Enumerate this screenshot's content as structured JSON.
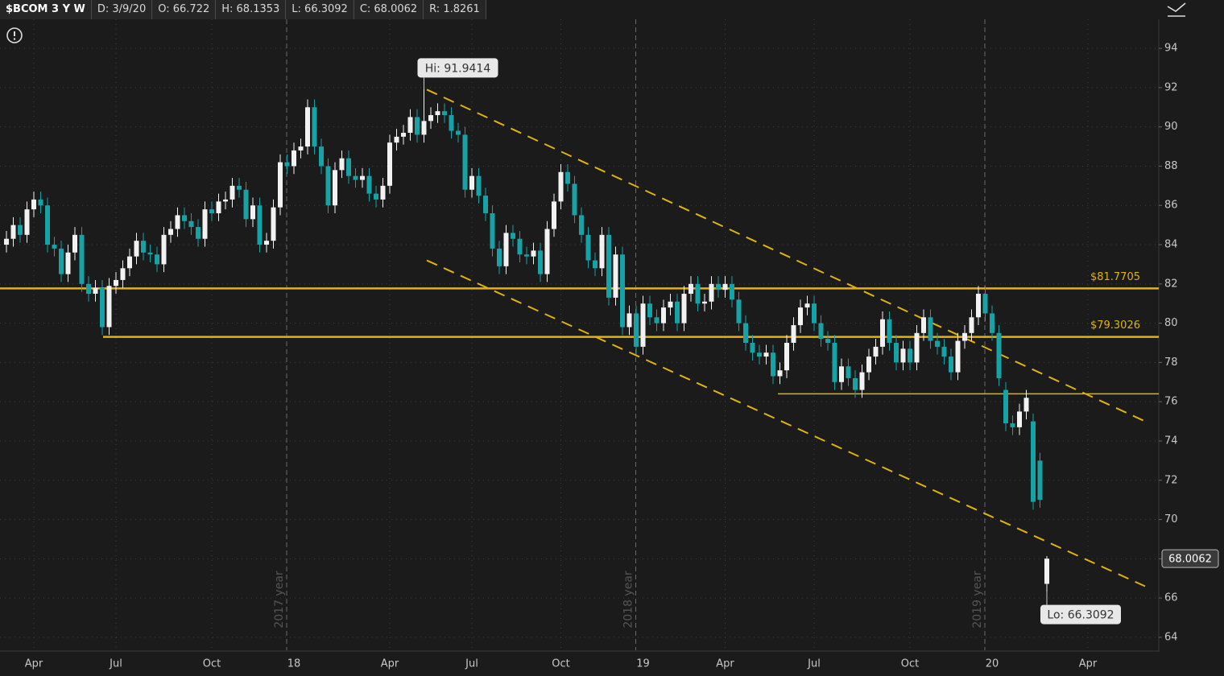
{
  "header": [
    "$BCOM 3 Y W",
    "D: 3/9/20",
    "O: 66.722",
    "H: 68.1353",
    "L: 66.3092",
    "C: 68.0062",
    "R: 1.8261"
  ],
  "chart_data": {
    "type": "candlestick",
    "categories": [
      null,
      null,
      null,
      null,
      "Apr",
      null,
      null,
      null,
      null,
      null,
      null,
      null,
      null,
      null,
      null,
      null,
      "Jul",
      null,
      null,
      null,
      null,
      null,
      null,
      null,
      null,
      null,
      null,
      null,
      null,
      null,
      "Oct",
      null,
      null,
      null,
      null,
      null,
      null,
      null,
      null,
      null,
      null,
      null,
      "18",
      null,
      null,
      null,
      null,
      null,
      null,
      null,
      null,
      null,
      null,
      null,
      null,
      null,
      "Apr",
      null,
      null,
      null,
      null,
      null,
      null,
      null,
      null,
      null,
      null,
      null,
      "Jul",
      null,
      null,
      null,
      null,
      null,
      null,
      null,
      null,
      null,
      null,
      null,
      null,
      "Oct",
      null,
      null,
      null,
      null,
      null,
      null,
      null,
      null,
      null,
      null,
      null,
      "19",
      null,
      null,
      null,
      null,
      null,
      null,
      null,
      null,
      null,
      null,
      null,
      "Apr",
      null,
      null,
      null,
      null,
      null,
      null,
      null,
      null,
      null,
      null,
      null,
      null,
      "Jul",
      null,
      null,
      null,
      null,
      null,
      null,
      null,
      null,
      null,
      null,
      null,
      null,
      null,
      "Oct",
      null,
      null,
      null,
      null,
      null,
      null,
      null,
      null,
      null,
      null,
      null,
      "20",
      null,
      null,
      null,
      null,
      null,
      null,
      null,
      null,
      null,
      null,
      null,
      null,
      null,
      "Apr",
      null,
      null,
      null,
      null,
      null,
      null,
      null,
      null,
      null,
      null
    ],
    "open": [
      84.0,
      84.3,
      85.0,
      84.5,
      85.8,
      86.3,
      86.0,
      84.0,
      83.8,
      82.5,
      83.6,
      84.5,
      82.0,
      81.5,
      81.8,
      79.8,
      81.9,
      82.2,
      82.8,
      83.4,
      84.2,
      83.6,
      83.5,
      83.0,
      84.5,
      84.8,
      85.5,
      85.2,
      84.9,
      84.3,
      85.8,
      85.6,
      86.2,
      86.3,
      87.0,
      86.8,
      85.3,
      86.0,
      84.0,
      84.2,
      85.9,
      88.2,
      88.0,
      88.8,
      89.0,
      91.0,
      89.0,
      88.0,
      86.0,
      87.8,
      88.4,
      87.5,
      87.3,
      87.5,
      86.6,
      86.3,
      87.0,
      89.2,
      89.5,
      89.7,
      90.5,
      89.6,
      90.3,
      90.6,
      90.8,
      90.6,
      89.8,
      89.6,
      86.8,
      87.5,
      86.5,
      85.6,
      83.8,
      82.9,
      84.6,
      84.3,
      83.5,
      83.4,
      83.7,
      82.5,
      84.8,
      86.2,
      87.7,
      87.1,
      85.5,
      84.5,
      83.2,
      82.8,
      84.5,
      81.3,
      83.5,
      79.8,
      80.5,
      78.8,
      81.0,
      80.3,
      80.0,
      80.8,
      81.1,
      80.0,
      81.5,
      82.0,
      81.0,
      81.1,
      82.0,
      81.7,
      82.0,
      81.2,
      80.0,
      79.0,
      78.5,
      78.3,
      78.5,
      77.3,
      77.6,
      79.0,
      79.9,
      80.8,
      81.0,
      80.0,
      79.2,
      79.0,
      77.0,
      77.8,
      77.2,
      76.6,
      77.5,
      78.3,
      78.8,
      80.2,
      79.0,
      78.0,
      78.7,
      78.0,
      79.5,
      80.3,
      79.1,
      78.8,
      78.3,
      77.5,
      79.1,
      79.5,
      80.3,
      81.5,
      80.5,
      79.5,
      76.6,
      74.9,
      74.7,
      75.5,
      75.0,
      73.0,
      66.722,
      null,
      null,
      null,
      null,
      null,
      null,
      null,
      null,
      null,
      null,
      null,
      null,
      null,
      null,
      null,
      null
    ],
    "high": [
      84.7,
      85.4,
      85.4,
      86.2,
      86.7,
      86.7,
      86.4,
      84.4,
      84.2,
      84.0,
      84.9,
      84.9,
      82.4,
      82.2,
      82.2,
      82.3,
      82.6,
      83.2,
      83.8,
      84.6,
      84.6,
      84.0,
      83.9,
      84.9,
      85.2,
      85.9,
      85.9,
      85.6,
      85.3,
      86.2,
      86.2,
      86.6,
      86.7,
      87.4,
      87.4,
      87.2,
      86.4,
      86.4,
      84.6,
      86.3,
      88.6,
      88.6,
      89.2,
      89.4,
      91.4,
      91.4,
      89.4,
      88.4,
      88.2,
      88.8,
      88.8,
      87.9,
      87.9,
      87.9,
      87.0,
      87.4,
      89.6,
      89.9,
      90.1,
      90.9,
      90.9,
      91.9414,
      91.0,
      91.2,
      91.2,
      91.0,
      90.2,
      90.0,
      87.9,
      87.9,
      86.9,
      86.0,
      84.2,
      85.0,
      85.0,
      84.7,
      83.9,
      84.1,
      84.1,
      85.2,
      86.6,
      88.1,
      88.1,
      87.5,
      85.9,
      84.9,
      83.6,
      84.9,
      84.9,
      83.9,
      83.9,
      80.9,
      80.9,
      81.4,
      81.4,
      80.7,
      81.2,
      81.5,
      81.5,
      81.9,
      82.4,
      82.4,
      81.5,
      82.4,
      82.4,
      82.4,
      82.4,
      81.6,
      80.4,
      79.4,
      78.9,
      78.9,
      78.9,
      78.0,
      79.4,
      80.3,
      81.2,
      81.4,
      81.4,
      80.4,
      79.6,
      79.4,
      78.2,
      78.2,
      77.6,
      77.9,
      78.7,
      79.2,
      80.6,
      80.6,
      79.4,
      79.1,
      79.1,
      79.9,
      80.7,
      80.7,
      79.5,
      79.2,
      78.7,
      79.5,
      79.9,
      80.7,
      81.9,
      81.9,
      80.9,
      79.9,
      77.0,
      75.3,
      75.9,
      76.6,
      75.4,
      73.4,
      68.1353,
      null,
      null,
      null,
      null,
      null,
      null,
      null,
      null,
      null,
      null,
      null,
      null,
      null,
      null,
      null,
      null
    ],
    "low": [
      83.6,
      83.9,
      84.1,
      84.1,
      85.4,
      85.6,
      83.6,
      83.4,
      82.1,
      82.1,
      83.2,
      81.6,
      81.1,
      81.1,
      79.4,
      79.4,
      81.5,
      81.8,
      82.4,
      83.0,
      83.2,
      83.1,
      82.6,
      82.6,
      84.1,
      84.4,
      84.8,
      84.5,
      83.9,
      83.9,
      85.2,
      85.2,
      85.8,
      85.9,
      86.4,
      84.9,
      84.9,
      83.6,
      83.6,
      83.8,
      85.5,
      87.6,
      87.6,
      88.4,
      88.6,
      88.6,
      87.6,
      85.6,
      85.6,
      87.4,
      87.1,
      86.9,
      86.9,
      86.2,
      85.9,
      85.9,
      86.6,
      88.8,
      89.1,
      89.3,
      89.2,
      89.2,
      89.9,
      90.2,
      90.2,
      89.4,
      89.2,
      86.4,
      86.4,
      86.1,
      85.2,
      83.4,
      82.5,
      82.5,
      83.9,
      83.1,
      83.0,
      83.0,
      82.1,
      82.1,
      84.4,
      85.8,
      86.7,
      85.1,
      84.1,
      82.8,
      82.4,
      82.4,
      80.9,
      80.9,
      79.4,
      79.4,
      78.4,
      78.4,
      79.9,
      79.6,
      79.6,
      80.4,
      79.6,
      79.6,
      81.1,
      80.6,
      80.6,
      80.7,
      81.3,
      81.3,
      80.8,
      79.6,
      78.6,
      78.1,
      77.9,
      77.9,
      76.9,
      76.9,
      77.2,
      78.6,
      79.5,
      80.4,
      79.6,
      78.8,
      78.6,
      76.6,
      76.6,
      76.8,
      76.2,
      76.2,
      77.1,
      77.9,
      78.4,
      78.6,
      77.6,
      77.6,
      77.6,
      77.6,
      79.1,
      78.7,
      78.4,
      77.9,
      77.1,
      77.1,
      78.7,
      79.1,
      79.9,
      80.1,
      79.1,
      76.8,
      74.5,
      74.3,
      74.3,
      75.1,
      70.5,
      70.6,
      66.3092,
      null,
      null,
      null,
      null,
      null,
      null,
      null,
      null,
      null,
      null,
      null,
      null,
      null,
      null,
      null,
      null
    ],
    "close": [
      84.3,
      85.0,
      84.5,
      85.8,
      86.3,
      86.0,
      84.0,
      83.8,
      82.5,
      83.6,
      84.5,
      82.0,
      81.5,
      81.8,
      79.8,
      81.9,
      82.2,
      82.8,
      83.4,
      84.2,
      83.6,
      83.5,
      83.0,
      84.5,
      84.8,
      85.5,
      85.2,
      84.9,
      84.3,
      85.8,
      85.6,
      86.2,
      86.3,
      87.0,
      86.8,
      85.3,
      86.0,
      84.0,
      84.2,
      85.9,
      88.2,
      88.0,
      88.8,
      89.0,
      91.0,
      89.0,
      88.0,
      86.0,
      87.8,
      88.4,
      87.5,
      87.3,
      87.5,
      86.6,
      86.3,
      87.0,
      89.2,
      89.5,
      89.7,
      90.5,
      89.6,
      90.3,
      90.6,
      90.8,
      90.6,
      89.8,
      89.6,
      86.8,
      87.5,
      86.5,
      85.6,
      83.8,
      82.9,
      84.6,
      84.3,
      83.5,
      83.4,
      83.7,
      82.5,
      84.8,
      86.2,
      87.7,
      87.1,
      85.5,
      84.5,
      83.2,
      82.8,
      84.5,
      81.3,
      83.5,
      79.8,
      80.5,
      78.8,
      81.0,
      80.3,
      80.0,
      80.8,
      81.1,
      80.0,
      81.5,
      82.0,
      81.0,
      81.1,
      82.0,
      81.7,
      82.0,
      81.2,
      80.0,
      79.0,
      78.5,
      78.3,
      78.5,
      77.3,
      77.6,
      79.0,
      79.9,
      80.8,
      81.0,
      80.0,
      79.2,
      79.0,
      77.0,
      77.8,
      77.2,
      76.6,
      77.5,
      78.3,
      78.8,
      80.2,
      79.0,
      78.0,
      78.7,
      78.0,
      79.5,
      80.3,
      79.1,
      78.8,
      78.3,
      77.5,
      79.1,
      79.5,
      80.3,
      81.5,
      80.5,
      79.5,
      77.2,
      74.9,
      74.7,
      75.5,
      76.2,
      70.9,
      71.0,
      68.0062,
      null,
      null,
      null,
      null,
      null,
      null,
      null,
      null,
      null,
      null,
      null,
      null,
      null,
      null,
      null,
      null
    ],
    "up_color": "#f2f2f2",
    "down_color": "#17a2a6",
    "ylim": [
      63.34,
      95.48
    ],
    "yticks": [
      64,
      66,
      68,
      70,
      72,
      74,
      76,
      78,
      80,
      82,
      84,
      86,
      88,
      90,
      92,
      94
    ],
    "grid": true,
    "levels": [
      {
        "value": 81.7705,
        "label": "$81.7705"
      },
      {
        "value": 79.3026,
        "label": "$79.3026"
      },
      76.4
    ],
    "level_color": "#e0b30e",
    "trendlines": [
      {
        "start": 91.9,
        "end": 75.0
      },
      {
        "start": 83.2,
        "end": 66.6
      }
    ],
    "year_labels": [
      "2017 year",
      "2018 year",
      "2019 year"
    ],
    "hi_label": "Hi: 91.9414",
    "lo_label": "Lo: 66.3092",
    "last_label": "68.0062"
  }
}
